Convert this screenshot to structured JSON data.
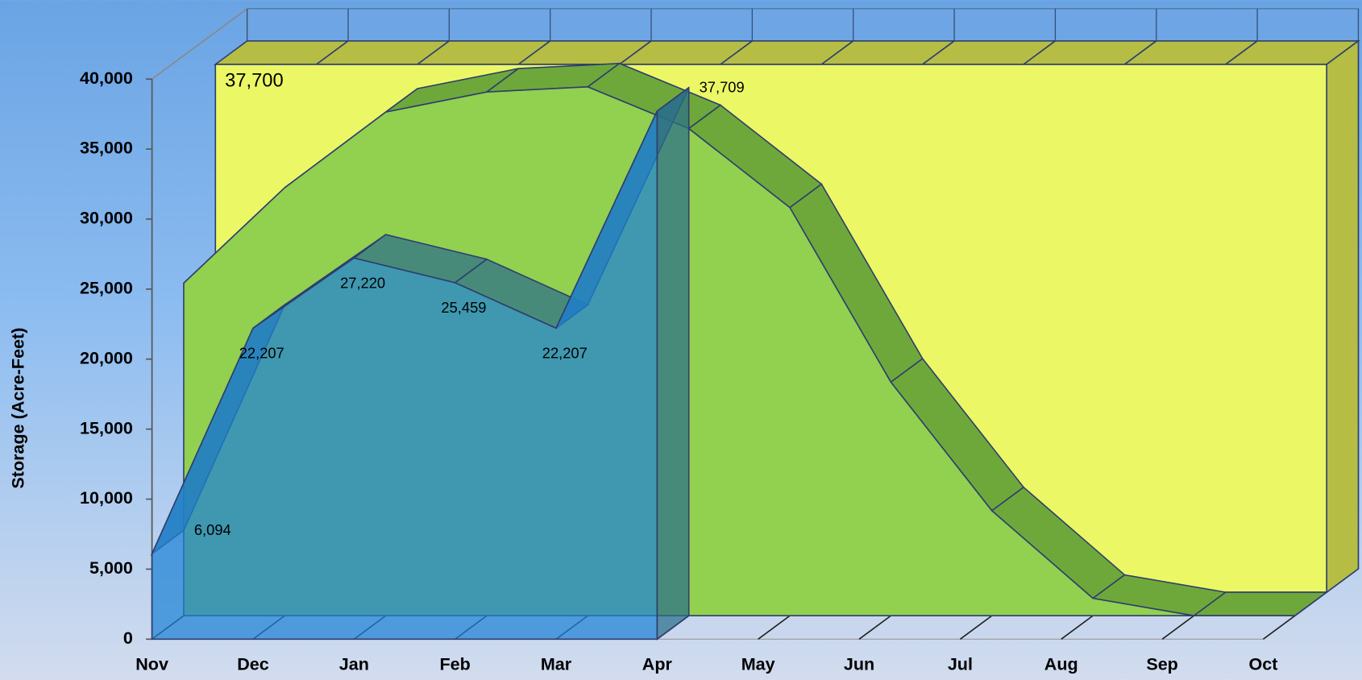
{
  "chart_data": {
    "type": "area",
    "y_label": "Storage (Acre-Feet)",
    "categories": [
      "Nov",
      "Dec",
      "Jan",
      "Feb",
      "Mar",
      "Apr",
      "May",
      "Jun",
      "Jul",
      "Aug",
      "Sep",
      "Oct"
    ],
    "ylim": [
      0,
      40000
    ],
    "yticks": [
      0,
      {
        "value": 5000,
        "label": "5,000"
      },
      {
        "value": 10000,
        "label": "10,000"
      },
      {
        "value": 15000,
        "label": "15,000"
      },
      {
        "value": 20000,
        "label": "20,000"
      },
      {
        "value": 25000,
        "label": "25,000"
      },
      {
        "value": 30000,
        "label": "30,000"
      },
      {
        "value": 35000,
        "label": "35,000"
      },
      {
        "value": 40000,
        "label": "40,000"
      }
    ],
    "series": [
      {
        "color": "#1f82d6",
        "top_color": "#2b6f8a",
        "values": [
          6094,
          22207,
          27220,
          25459,
          22207,
          37709,
          null,
          null,
          null,
          null,
          null,
          null
        ],
        "value_labels": [
          "6,094",
          "22,207",
          "27,220",
          "25,459",
          "22,207",
          "37,709",
          null,
          null,
          null,
          null,
          null,
          null
        ]
      },
      {
        "color": "#92d050",
        "top_color": "#6fa83a",
        "values": [
          23750,
          30570,
          35970,
          37400,
          37770,
          34790,
          29150,
          16680,
          7500,
          1240,
          0,
          0
        ]
      },
      {
        "color": "#ecf766",
        "top_color": "#b5bd45",
        "values": [
          37700,
          37700,
          37700,
          37700,
          37700,
          37700,
          37700,
          37700,
          37700,
          37700,
          37700,
          37700
        ],
        "value_labels": [
          "37,700",
          null,
          null,
          null,
          null,
          null,
          null,
          null,
          null,
          null,
          null,
          null
        ]
      }
    ]
  }
}
